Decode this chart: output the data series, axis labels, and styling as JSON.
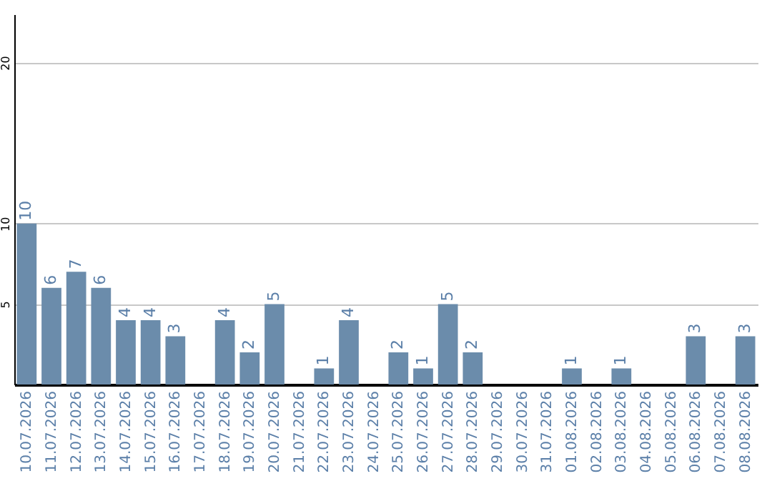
{
  "chart_data": {
    "type": "bar",
    "categories": [
      "10.07.2026",
      "11.07.2026",
      "12.07.2026",
      "13.07.2026",
      "14.07.2026",
      "15.07.2026",
      "16.07.2026",
      "17.07.2026",
      "18.07.2026",
      "19.07.2026",
      "20.07.2026",
      "21.07.2026",
      "22.07.2026",
      "23.07.2026",
      "24.07.2026",
      "25.07.2026",
      "26.07.2026",
      "27.07.2026",
      "28.07.2026",
      "29.07.2026",
      "30.07.2026",
      "31.07.2026",
      "01.08.2026",
      "02.08.2026",
      "03.08.2026",
      "04.08.2026",
      "05.08.2026",
      "06.08.2026",
      "07.08.2026",
      "08.08.2026"
    ],
    "values": [
      10,
      6,
      7,
      6,
      4,
      4,
      3,
      null,
      4,
      2,
      5,
      null,
      1,
      4,
      null,
      2,
      1,
      5,
      2,
      null,
      null,
      null,
      1,
      null,
      1,
      null,
      null,
      3,
      null,
      3
    ],
    "color": "#6b8cab",
    "ylim": [
      0,
      23
    ],
    "yticks": [
      5,
      10,
      20
    ],
    "grid": "y",
    "data_labels": true
  }
}
